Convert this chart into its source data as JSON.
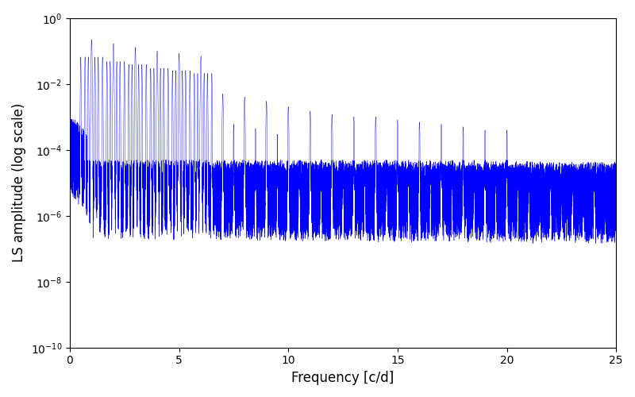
{
  "xlabel": "Frequency [c/d]",
  "ylabel": "LS amplitude (log scale)",
  "title": "",
  "xlim": [
    0,
    25
  ],
  "ylim": [
    1e-10,
    1.0
  ],
  "line_color": "#0000FF",
  "background_color": "#ffffff",
  "figsize": [
    8.0,
    5.0
  ],
  "dpi": 100,
  "seed": 7,
  "n_points": 25000,
  "freq_max": 25.0,
  "xticks": [
    0,
    5,
    10,
    15,
    20,
    25
  ],
  "peak_freqs": [
    1.0,
    2.0,
    3.0,
    4.0,
    5.0,
    6.0,
    7.0,
    8.0,
    9.0,
    10.0,
    11.0,
    12.0,
    13.0,
    14.0,
    15.0,
    16.0,
    17.0,
    18.0,
    19.0,
    20.0,
    21.0,
    22.0,
    23.0,
    24.0
  ],
  "peak_amps": [
    0.2,
    0.17,
    0.12,
    0.09,
    0.08,
    0.06,
    0.005,
    0.004,
    0.003,
    0.002,
    0.0015,
    0.0012,
    0.001,
    0.001,
    0.0008,
    0.0007,
    0.0006,
    0.0005,
    0.0004,
    0.0004,
    3e-05,
    3e-05,
    3e-05,
    3e-05
  ],
  "linewidth": 0.3
}
